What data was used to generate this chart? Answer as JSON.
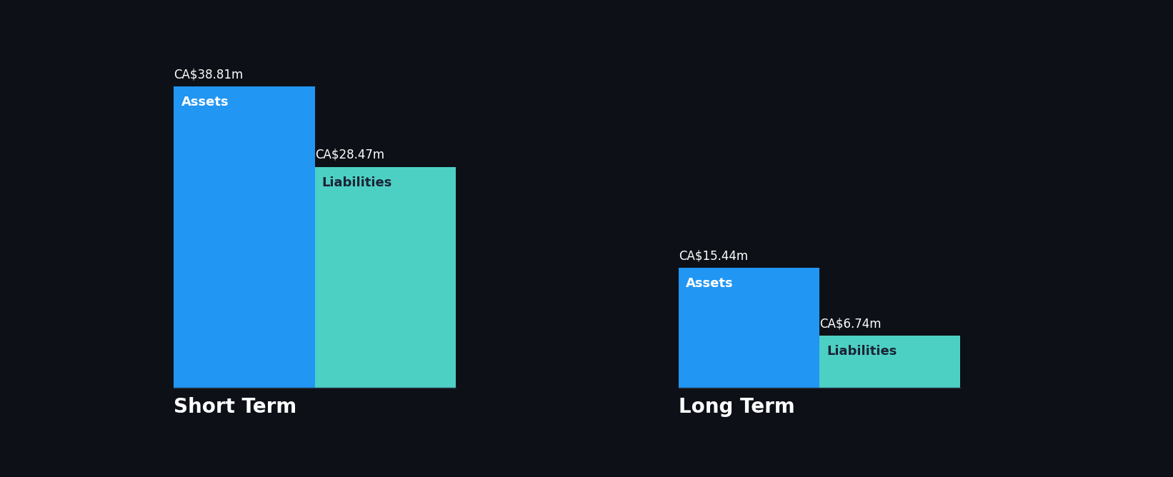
{
  "background_color": "#0d1117",
  "short_term": {
    "assets_value": 38.81,
    "liabilities_value": 28.47,
    "assets_label": "Assets",
    "liabilities_label": "Liabilities",
    "assets_color": "#2196f3",
    "liabilities_color": "#4dd0c4",
    "label": "Short Term",
    "assets_value_str": "CA$38.81m",
    "liabilities_value_str": "CA$28.47m"
  },
  "long_term": {
    "assets_value": 15.44,
    "liabilities_value": 6.74,
    "assets_label": "Assets",
    "liabilities_label": "Liabilities",
    "assets_color": "#2196f3",
    "liabilities_color": "#4dd0c4",
    "label": "Long Term",
    "assets_value_str": "CA$15.44m",
    "liabilities_value_str": "CA$6.74m"
  },
  "max_value": 38.81,
  "label_fontsize": 13,
  "value_fontsize": 12,
  "category_fontsize": 20,
  "text_color": "#ffffff",
  "dark_text_color": "#1a2535"
}
